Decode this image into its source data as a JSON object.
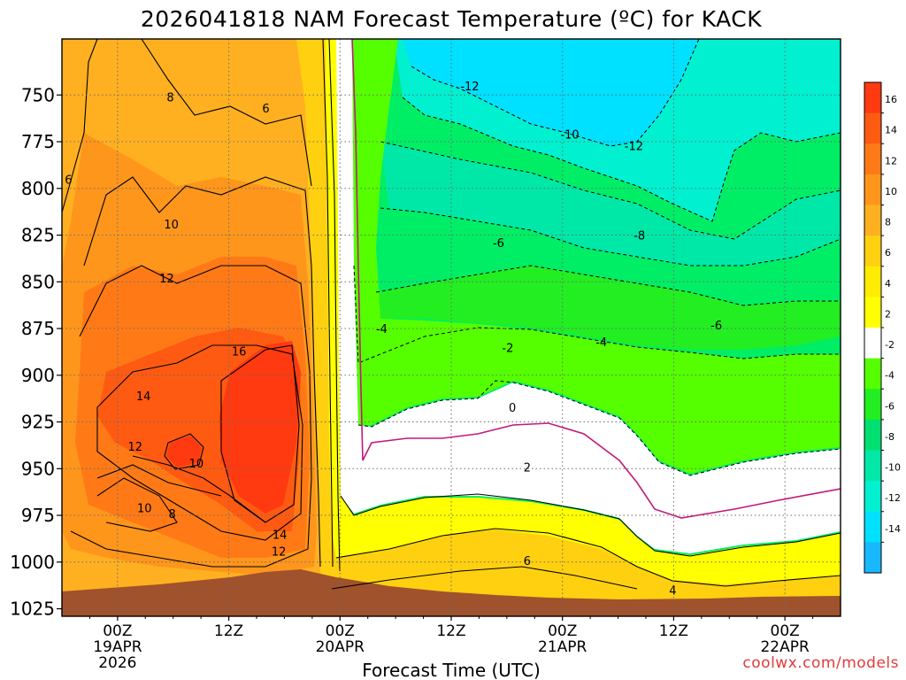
{
  "chart_data": {
    "type": "heatmap",
    "title": "2026041818 NAM Forecast Temperature (ºC) for KACK",
    "xlabel": "Forecast Time (UTC)",
    "ylabel": "",
    "credit": "coolwx.com/models",
    "x_ticks": [
      {
        "hours": 6,
        "label": "00Z",
        "sub1": "19APR",
        "sub2": "2026"
      },
      {
        "hours": 18,
        "label": "12Z",
        "sub1": "",
        "sub2": ""
      },
      {
        "hours": 30,
        "label": "00Z",
        "sub1": "20APR",
        "sub2": ""
      },
      {
        "hours": 42,
        "label": "12Z",
        "sub1": "",
        "sub2": ""
      },
      {
        "hours": 54,
        "label": "00Z",
        "sub1": "21APR",
        "sub2": ""
      },
      {
        "hours": 66,
        "label": "12Z",
        "sub1": "",
        "sub2": ""
      },
      {
        "hours": 78,
        "label": "00Z",
        "sub1": "22APR",
        "sub2": ""
      }
    ],
    "x_range_hours": [
      0,
      84
    ],
    "y_ticks": [
      750,
      775,
      800,
      825,
      850,
      875,
      900,
      925,
      950,
      975,
      1000,
      1025
    ],
    "y_range_hPa": [
      720,
      1029
    ],
    "colorbar": [
      {
        "label": "16",
        "color": "#ff3a10"
      },
      {
        "label": "14",
        "color": "#ff5a12"
      },
      {
        "label": "12",
        "color": "#ff7a16"
      },
      {
        "label": "10",
        "color": "#ff961c"
      },
      {
        "label": "8",
        "color": "#ffb020"
      },
      {
        "label": "6",
        "color": "#ffd010"
      },
      {
        "label": "4",
        "color": "#ffec00"
      },
      {
        "label": "2",
        "color": "#ffff00"
      },
      {
        "label": "-2",
        "color": "#ffffff"
      },
      {
        "label": "-4",
        "color": "#55ff00"
      },
      {
        "label": "-6",
        "color": "#22ee22"
      },
      {
        "label": "-8",
        "color": "#00e070"
      },
      {
        "label": "-10",
        "color": "#00e8a8"
      },
      {
        "label": "-12",
        "color": "#00f0d0"
      },
      {
        "label": "-14",
        "color": "#00e0ff"
      },
      {
        "label": "",
        "color": "#18b8ff"
      }
    ],
    "contour_labels": [
      {
        "text": "8",
        "hours": 11.7,
        "hPa": 752
      },
      {
        "text": "6",
        "hours": 22.0,
        "hPa": 758
      },
      {
        "text": "6",
        "hours": 0.7,
        "hPa": 796
      },
      {
        "text": "10",
        "hours": 11.8,
        "hPa": 820
      },
      {
        "text": "12",
        "hours": 11.3,
        "hPa": 849
      },
      {
        "text": "16",
        "hours": 19.1,
        "hPa": 888
      },
      {
        "text": "14",
        "hours": 8.8,
        "hPa": 912
      },
      {
        "text": "12",
        "hours": 7.9,
        "hPa": 939
      },
      {
        "text": "10",
        "hours": 14.5,
        "hPa": 948
      },
      {
        "text": "10",
        "hours": 8.9,
        "hPa": 972
      },
      {
        "text": "8",
        "hours": 11.9,
        "hPa": 975
      },
      {
        "text": "14",
        "hours": 23.5,
        "hPa": 986
      },
      {
        "text": "12",
        "hours": 23.4,
        "hPa": 995
      },
      {
        "text": "-12",
        "hours": 44.0,
        "hPa": 746
      },
      {
        "text": "-10",
        "hours": 54.8,
        "hPa": 772
      },
      {
        "text": "-12",
        "hours": 61.7,
        "hPa": 778
      },
      {
        "text": "-8",
        "hours": 62.3,
        "hPa": 826
      },
      {
        "text": "-6",
        "hours": 47.1,
        "hPa": 830
      },
      {
        "text": "-4",
        "hours": 34.5,
        "hPa": 876
      },
      {
        "text": "-4",
        "hours": 58.2,
        "hPa": 883
      },
      {
        "text": "-6",
        "hours": 70.6,
        "hPa": 874
      },
      {
        "text": "-2",
        "hours": 48.1,
        "hPa": 886
      },
      {
        "text": "0",
        "hours": 48.6,
        "hPa": 918
      },
      {
        "text": "2",
        "hours": 50.2,
        "hPa": 950
      },
      {
        "text": "6",
        "hours": 50.2,
        "hPa": 1000
      },
      {
        "text": "4",
        "hours": 65.9,
        "hPa": 1016
      }
    ]
  }
}
